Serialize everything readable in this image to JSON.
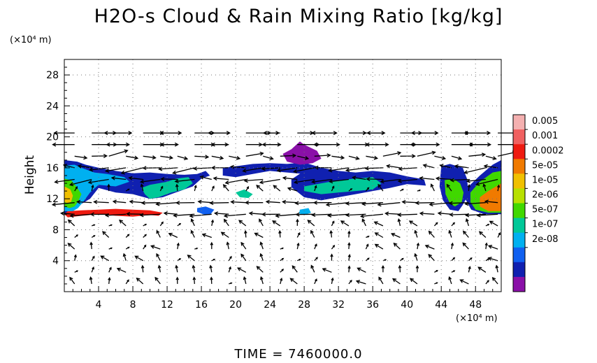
{
  "chart_data": {
    "type": "heatmap",
    "title": "H2O-s Cloud & Rain Mixing Ratio [kg/kg]",
    "ylabel": "Height",
    "x_unit": "(×10⁴ m)",
    "y_unit": "(×10⁴ m)",
    "time_label": "TIME  =  7460000.0",
    "xlim": [
      0,
      51
    ],
    "ylim": [
      0,
      30
    ],
    "x_ticks": [
      "4",
      "8",
      "12",
      "16",
      "20",
      "24",
      "28",
      "32",
      "36",
      "40",
      "44",
      "48"
    ],
    "y_ticks": [
      "4",
      "8",
      "12",
      "16",
      "20",
      "24",
      "28"
    ],
    "colorbar": {
      "labels": [
        "0.005",
        "0.001",
        "0.0002",
        "5e-05",
        "1e-05",
        "2e-06",
        "5e-07",
        "1e-07",
        "2e-08"
      ],
      "colors": [
        "#f4b0b0",
        "#f06060",
        "#ee1a10",
        "#f07a00",
        "#f0c000",
        "#b8e000",
        "#40d800",
        "#00c898",
        "#00b0f0",
        "#1060f0",
        "#1020b0",
        "#8a10a8"
      ]
    },
    "cloud_regions": [
      {
        "level": 2,
        "x": [
          0,
          0.4,
          2,
          4,
          6,
          8,
          10,
          11,
          11.5,
          10,
          8,
          6,
          4,
          2,
          0.5,
          0
        ],
        "y": [
          10,
          9.6,
          9.8,
          10,
          9.8,
          9.7,
          9.9,
          9.8,
          10.2,
          10.5,
          10.6,
          10.7,
          10.6,
          10.5,
          10.4,
          10.3
        ]
      },
      {
        "level": 10,
        "x": [
          0,
          1.5,
          2.5,
          4,
          6,
          8,
          10,
          12,
          14,
          15.5,
          16.5,
          17,
          16,
          15,
          14,
          13,
          11.5,
          10,
          8,
          6,
          4,
          3,
          1.5,
          0.5,
          0
        ],
        "y": [
          17,
          16.8,
          16.4,
          16,
          15.6,
          15.3,
          15.4,
          15.2,
          15.1,
          15.2,
          15.6,
          15,
          14.6,
          13.6,
          13.2,
          12.8,
          12.2,
          12,
          12.6,
          12.8,
          13.4,
          12,
          11,
          10.5,
          10
        ]
      },
      {
        "level": 8,
        "x": [
          0,
          1.2,
          2,
          3.5,
          5,
          7,
          7.6,
          6,
          4,
          3,
          2.2,
          1.6,
          1,
          0
        ],
        "y": [
          16.3,
          16.4,
          16,
          15.4,
          15.2,
          14.8,
          14.2,
          13.6,
          13.8,
          12.8,
          11.6,
          10.8,
          10.4,
          10.4
        ]
      },
      {
        "level": 6,
        "x": [
          0,
          0.8,
          1.4,
          2,
          1.6,
          1.2,
          0.6,
          0
        ],
        "y": [
          14.6,
          14.4,
          13.6,
          12.6,
          11.6,
          11,
          10.8,
          11
        ]
      },
      {
        "level": 4,
        "x": [
          0,
          0.7,
          1,
          0.8,
          0.4,
          0
        ],
        "y": [
          13.6,
          13.2,
          12.4,
          11.6,
          11.4,
          11.6
        ]
      },
      {
        "level": 7,
        "x": [
          9,
          10,
          12,
          13,
          14.5,
          15,
          14,
          12.5,
          11,
          10,
          9.4
        ],
        "y": [
          13.4,
          13.8,
          14.2,
          14.6,
          14.8,
          14,
          13.2,
          12.8,
          12.2,
          12,
          12.6
        ]
      },
      {
        "level": 9,
        "x": [
          15.5,
          16.5,
          17.5,
          17,
          16.2,
          15.5
        ],
        "y": [
          10.8,
          11,
          10.6,
          9.9,
          10,
          10.3
        ]
      },
      {
        "level": 10,
        "x": [
          18.5,
          20,
          22,
          24,
          26,
          28,
          30,
          32,
          30.5,
          28,
          26,
          24,
          22,
          20,
          18.5
        ],
        "y": [
          16,
          16.2,
          16.5,
          16.6,
          16.5,
          16.7,
          16,
          15.4,
          15,
          15.2,
          15.4,
          15.6,
          15.2,
          14.8,
          15
        ]
      },
      {
        "level": 11,
        "x": [
          25.5,
          26.5,
          27.5,
          28,
          29.5,
          30,
          29,
          27.5,
          26
        ],
        "y": [
          17.8,
          18.4,
          19.4,
          19,
          18.2,
          17.2,
          16.6,
          16.4,
          16.8
        ]
      },
      {
        "level": 7,
        "x": [
          20,
          21,
          22,
          21.5,
          20.5
        ],
        "y": [
          12.8,
          13.2,
          12.6,
          12.1,
          12.2
        ]
      },
      {
        "level": 10,
        "x": [
          26.5,
          28,
          30,
          32,
          34,
          36,
          38,
          40,
          42,
          42.2,
          40,
          38,
          36,
          34,
          32,
          30,
          28,
          26.5
        ],
        "y": [
          14.5,
          15.6,
          16,
          15.6,
          15.4,
          15.6,
          15.4,
          14.9,
          14.5,
          13.7,
          13.9,
          13.4,
          13,
          12.6,
          12.2,
          11.8,
          12.2,
          13.5
        ]
      },
      {
        "level": 7,
        "x": [
          28,
          30,
          32,
          34,
          36,
          37,
          36,
          34,
          32,
          30,
          28
        ],
        "y": [
          13.6,
          14,
          14.4,
          14.6,
          14.8,
          14,
          13.2,
          13,
          12.8,
          12.6,
          13
        ]
      },
      {
        "level": 8,
        "x": [
          27.5,
          28.5,
          28.8,
          28,
          27.4
        ],
        "y": [
          10.6,
          10.8,
          10.2,
          9.9,
          10.1
        ]
      },
      {
        "level": 10,
        "x": [
          44,
          45,
          46.5,
          47,
          47.2,
          46.5,
          46,
          45,
          44.2,
          43.8
        ],
        "y": [
          16.2,
          16.5,
          16,
          14.6,
          12.6,
          11.2,
          10.4,
          10.6,
          11.8,
          13.6
        ]
      },
      {
        "level": 6,
        "x": [
          44.4,
          45.4,
          46.2,
          46.6,
          46.4,
          45.6,
          45,
          44.5
        ],
        "y": [
          14.4,
          14.6,
          14,
          12.8,
          11.6,
          11,
          11.4,
          12.6
        ]
      },
      {
        "level": 10,
        "x": [
          47,
          48.5,
          50,
          51,
          51,
          49,
          47.5,
          46.8
        ],
        "y": [
          13.4,
          15,
          16.4,
          17,
          10,
          10,
          10.6,
          12
        ]
      },
      {
        "level": 6,
        "x": [
          47.4,
          48.5,
          50,
          51,
          51,
          49.5,
          48,
          47.4
        ],
        "y": [
          12.8,
          14.2,
          15.4,
          15.6,
          10.2,
          10.2,
          10.6,
          11.6
        ]
      },
      {
        "level": 3,
        "x": [
          48.5,
          49.5,
          51,
          51,
          49.5,
          48.5
        ],
        "y": [
          12.2,
          13,
          14,
          10.4,
          10.4,
          11
        ]
      }
    ]
  }
}
